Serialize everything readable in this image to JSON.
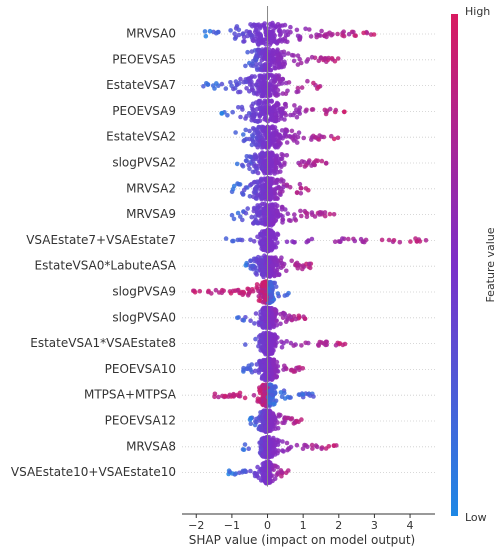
{
  "chart_data": {
    "type": "scatter",
    "subtype": "shap-beeswarm",
    "xlabel": "SHAP value (impact on model output)",
    "xticks": [
      -2,
      -1,
      0,
      1,
      2,
      3,
      4
    ],
    "xlim": [
      -2.4,
      4.7
    ],
    "colorbar": {
      "label": "Feature value",
      "high": "High",
      "low": "Low",
      "low_color": "#1e88e5",
      "high_color": "#d81b60"
    },
    "zero_line": true,
    "features": [
      {
        "name": "MRVSA0",
        "min": -1.8,
        "max": 3.0,
        "core": 0.9
      },
      {
        "name": "PEOEVSA5",
        "min": -0.7,
        "max": 2.0,
        "core": 0.6
      },
      {
        "name": "EstateVSA7",
        "min": -1.8,
        "max": 1.5,
        "core": 0.7
      },
      {
        "name": "PEOEVSA9",
        "min": -1.3,
        "max": 2.2,
        "core": 0.7
      },
      {
        "name": "EstateVSA2",
        "min": -0.9,
        "max": 2.0,
        "core": 0.6
      },
      {
        "name": "slogPVSA2",
        "min": -1.0,
        "max": 1.8,
        "core": 0.6
      },
      {
        "name": "MRVSA2",
        "min": -1.0,
        "max": 1.3,
        "core": 0.6
      },
      {
        "name": "MRVSA9",
        "min": -1.0,
        "max": 1.9,
        "core": 0.6
      },
      {
        "name": "VSAEstate7+VSAEstate7",
        "min": -1.2,
        "max": 4.5,
        "core": 0.3
      },
      {
        "name": "EstateVSA0*LabuteASA",
        "min": -0.7,
        "max": 1.3,
        "core": 0.5
      },
      {
        "name": "slogPVSA9",
        "min": -2.1,
        "max": 0.6,
        "core": 0.3
      },
      {
        "name": "slogPVSA0",
        "min": -0.9,
        "max": 1.1,
        "core": 0.3
      },
      {
        "name": "EstateVSA1*VSAEstate8",
        "min": -0.7,
        "max": 2.2,
        "core": 0.3
      },
      {
        "name": "PEOEVSA10",
        "min": -0.8,
        "max": 1.0,
        "core": 0.3
      },
      {
        "name": "MTPSA+MTPSA",
        "min": -1.5,
        "max": 1.3,
        "core": 0.3
      },
      {
        "name": "PEOEVSA12",
        "min": -0.5,
        "max": 1.0,
        "core": 0.3
      },
      {
        "name": "MRVSA8",
        "min": -0.7,
        "max": 2.0,
        "core": 0.3
      },
      {
        "name": "VSAEstate10+VSAEstate10",
        "min": -1.1,
        "max": 0.6,
        "core": 0.2
      }
    ]
  }
}
